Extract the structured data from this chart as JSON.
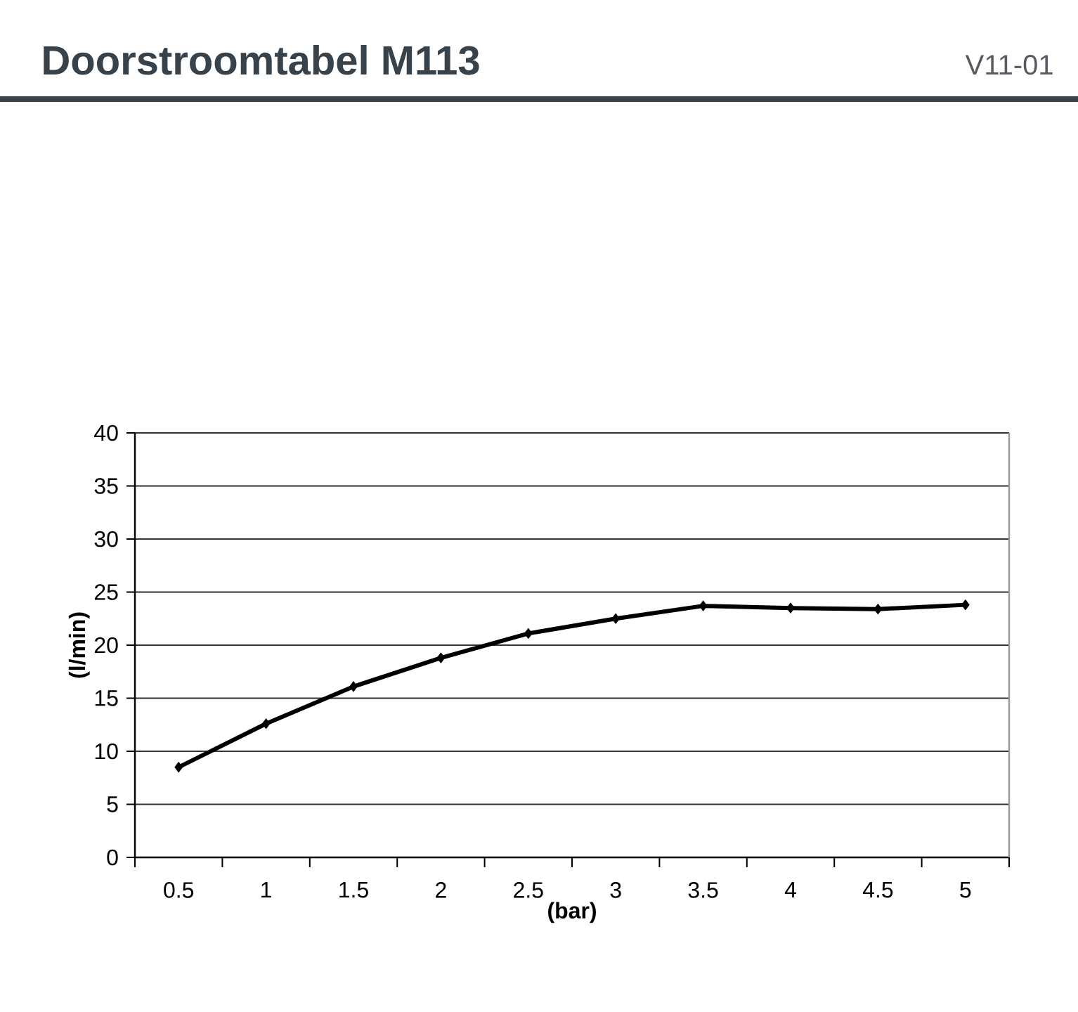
{
  "chart_data": {
    "type": "line",
    "title": "Doorstroomtabel M113",
    "annotations": [
      "V11-01"
    ],
    "xlabel": "(bar)",
    "ylabel": "(l/min)",
    "categories": [
      "0.5",
      "1",
      "1.5",
      "2",
      "2.5",
      "3",
      "3.5",
      "4",
      "4.5",
      "5"
    ],
    "values": [
      8.5,
      12.6,
      16.1,
      18.8,
      21.1,
      22.5,
      23.7,
      23.5,
      23.4,
      23.8
    ],
    "color": "#000000",
    "ylim": [
      0,
      40
    ],
    "yticks": [
      0,
      5,
      10,
      15,
      20,
      25,
      30,
      35,
      40
    ],
    "grid": "y",
    "marker": "diamond",
    "line_style": "solid"
  }
}
